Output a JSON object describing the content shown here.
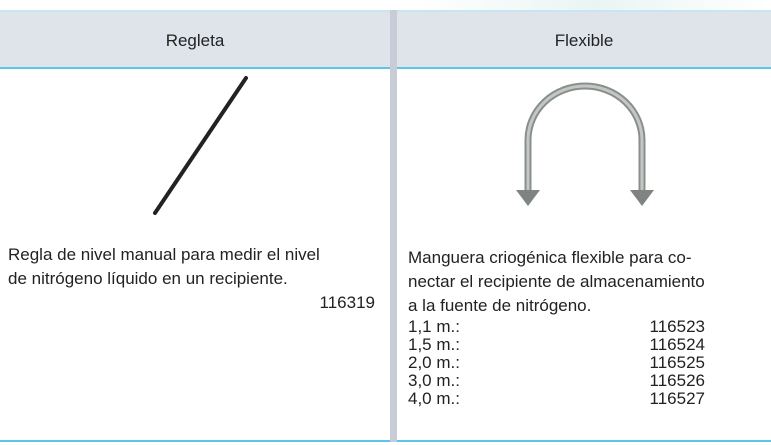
{
  "table": {
    "columns": [
      "Regleta",
      "Flexible"
    ],
    "regleta": {
      "description": [
        "Regla de nivel manual para medir el nivel",
        "de nitrógeno líquido en un recipiente."
      ],
      "code": "116319"
    },
    "flexible": {
      "description": [
        "Manguera criogénica flexible para co-",
        "nectar el recipiente de almacenamiento",
        "a la fuente de nitrógeno."
      ],
      "variants": [
        {
          "length": "1,1 m.:",
          "code": "116523"
        },
        {
          "length": "1,5 m.:",
          "code": "116524"
        },
        {
          "length": "2,0 m.:",
          "code": "116525"
        },
        {
          "length": "3,0 m.:",
          "code": "116526"
        },
        {
          "length": "4,0 m.:",
          "code": "116527"
        }
      ]
    }
  }
}
